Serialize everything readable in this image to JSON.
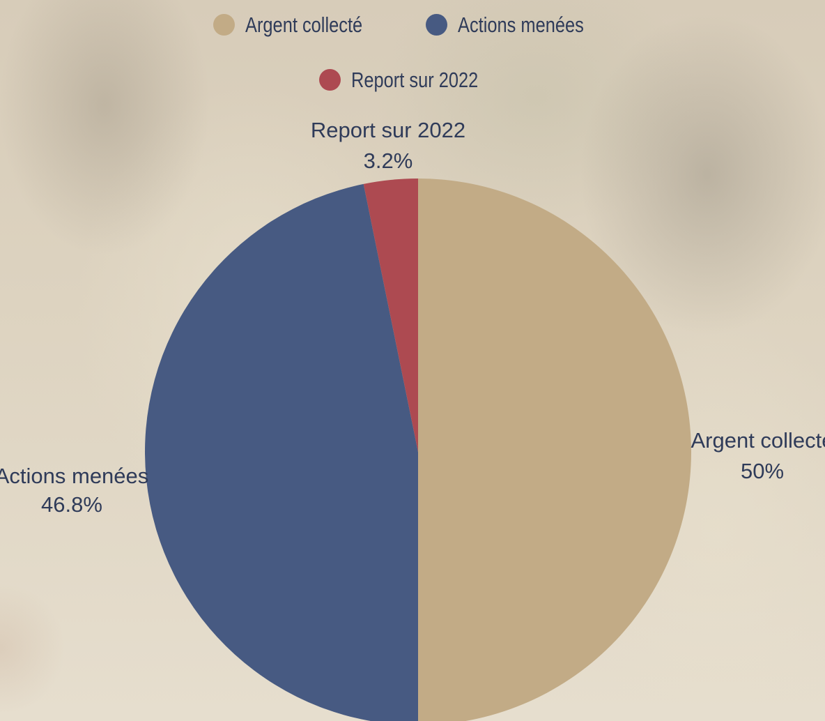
{
  "chart_data": {
    "type": "pie",
    "title": "",
    "series": [
      {
        "values": [
          50,
          46.8,
          3.2
        ]
      }
    ],
    "categories": [
      "Argent collecté",
      "Actions menées",
      "Report sur 2022"
    ],
    "values": [
      50,
      46.8,
      3.2
    ],
    "labels": [
      "50%",
      "46.8%",
      "3.2%"
    ],
    "colors": [
      "#c2ab86",
      "#475a82",
      "#ad4a51"
    ],
    "legend_position": "top",
    "start_angle": "top",
    "direction": "clockwise"
  },
  "legend": {
    "items": [
      {
        "label": "Argent collecté",
        "color": "#c2ab86"
      },
      {
        "label": "Actions menées",
        "color": "#475a82"
      },
      {
        "label": "Report sur 2022",
        "color": "#ad4a51"
      }
    ]
  },
  "slice_labels": [
    {
      "name": "Argent collecté",
      "value": "50%"
    },
    {
      "name": "Actions menées",
      "value": "46.8%"
    },
    {
      "name": "Report sur 2022",
      "value": "3.2%"
    }
  ]
}
